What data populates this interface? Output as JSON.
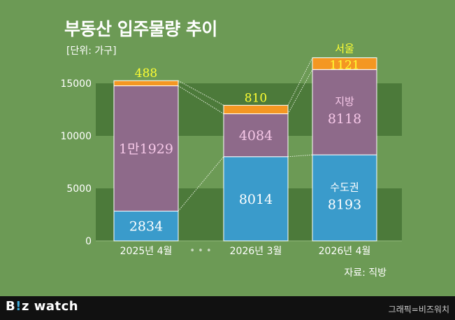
{
  "header": {
    "title": "부동산 입주물량 추이",
    "unit": "[단위: 가구]"
  },
  "chart_data": {
    "type": "bar",
    "stacked": true,
    "categories": [
      "2025년 4월",
      "2026년 3월",
      "2026년 4월"
    ],
    "series": [
      {
        "name": "수도권",
        "values": [
          2834,
          8014,
          8193
        ],
        "labels": [
          "2834",
          "8014",
          "8193"
        ]
      },
      {
        "name": "지방",
        "values": [
          11929,
          4084,
          8118
        ],
        "labels": [
          "1만1929",
          "4084",
          "8118"
        ]
      },
      {
        "name": "서울",
        "values": [
          488,
          810,
          1121
        ],
        "labels": [
          "488",
          "810",
          "1121"
        ]
      }
    ],
    "segment_name_labels": [
      "수도권",
      "지방",
      "서울"
    ],
    "axis_gap_marker": "• • •",
    "ylim": [
      0,
      15000
    ],
    "yticks": [
      "0",
      "5000",
      "10000",
      "15000"
    ],
    "ytick_values": [
      0,
      5000,
      10000,
      15000
    ],
    "colors": {
      "수도권": "#3a9bcb",
      "지방": "#8e6a8a",
      "서울": "#f49722",
      "background": "#6c9a55",
      "band": "#4c7a3a",
      "inner_label_metro": "#ffffff",
      "inner_label_region": "#f6c8e8",
      "top_label": "#ffff33"
    }
  },
  "footer": {
    "source": "자료: 직방",
    "logo_pre": "B",
    "logo_dot": "!",
    "logo_post": "z watch",
    "credit": "그래픽=비즈워치"
  }
}
